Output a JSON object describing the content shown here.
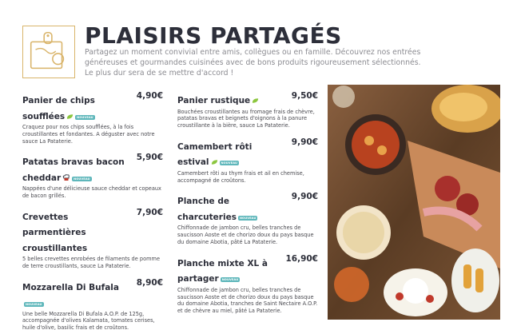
{
  "header": {
    "title": "PLAISIRS PARTAGÉS",
    "intro": "Partagez un moment convivial entre amis, collègues ou en famille. Découvrez nos entrées généreuses et gourmandes cuisinées avec de bons produits rigoureusement sélectionnés. Le plus dur sera de se mettre d'accord !"
  },
  "badge_label": "NOUVEAU",
  "colors": {
    "title": "#2d2f3a",
    "gold": "#d9b46a",
    "badge": "#5fb7bb",
    "veg": "#8cc63f"
  },
  "menu": {
    "left": [
      {
        "name": "Panier de chips soufflées",
        "price": "4,90€",
        "desc": "Craquez pour nos chips soufflées, à la fois croustillantes et fondantes. A déguster avec notre sauce La Pataterie.",
        "veg": true,
        "new": true
      },
      {
        "name": "Patatas bravas bacon cheddar",
        "price": "5,90€",
        "desc": "Nappées d'une délicieuse sauce cheddar et copeaux de bacon grillés.",
        "chef": true,
        "new": true
      },
      {
        "name": "Crevettes parmentières croustillantes",
        "price": "7,90€",
        "desc": "5 belles crevettes enrobées de filaments de pomme de terre croustillants, sauce La Pataterie."
      },
      {
        "name": "Mozzarella Di Bufala",
        "price": "8,90€",
        "desc": "Une belle Mozzarella Di Bufala A.O.P. de 125g, accompagnée d'olives Kalamata, tomates cerises, huile d'olive, basilic frais et de croûtons.",
        "new": true
      }
    ],
    "middle": [
      {
        "name": "Panier rustique",
        "price": "9,50€",
        "desc": "Bouchées croustillantes au fromage frais de chèvre, patatas bravas et beignets d'oignons à la panure croustillante à la bière, sauce La Pataterie.",
        "veg": true
      },
      {
        "name": "Camembert rôti estival",
        "price": "9,90€",
        "desc": "Camembert rôti au thym frais et ail en chemise, accompagné de croûtons.",
        "veg": true,
        "new": true
      },
      {
        "name": "Planche de charcuteries",
        "price": "9,90€",
        "desc": "Chiffonnade de jambon cru, belles tranches de saucisson Aoste et de chorizo doux du pays basque du domaine Abotia, pâté La Pataterie.",
        "new": true
      },
      {
        "name": "Planche mixte XL à partager",
        "price": "16,90€",
        "desc": "Chiffonnade de jambon cru, belles tranches de saucisson Aoste et de chorizo doux du pays basque du domaine Abotia, tranches de Saint Nectaire A.O.P. et de chèvre au miel, pâté La Pataterie.",
        "new": true
      }
    ]
  },
  "photo": {
    "icon": "sharing-platter-photo"
  }
}
